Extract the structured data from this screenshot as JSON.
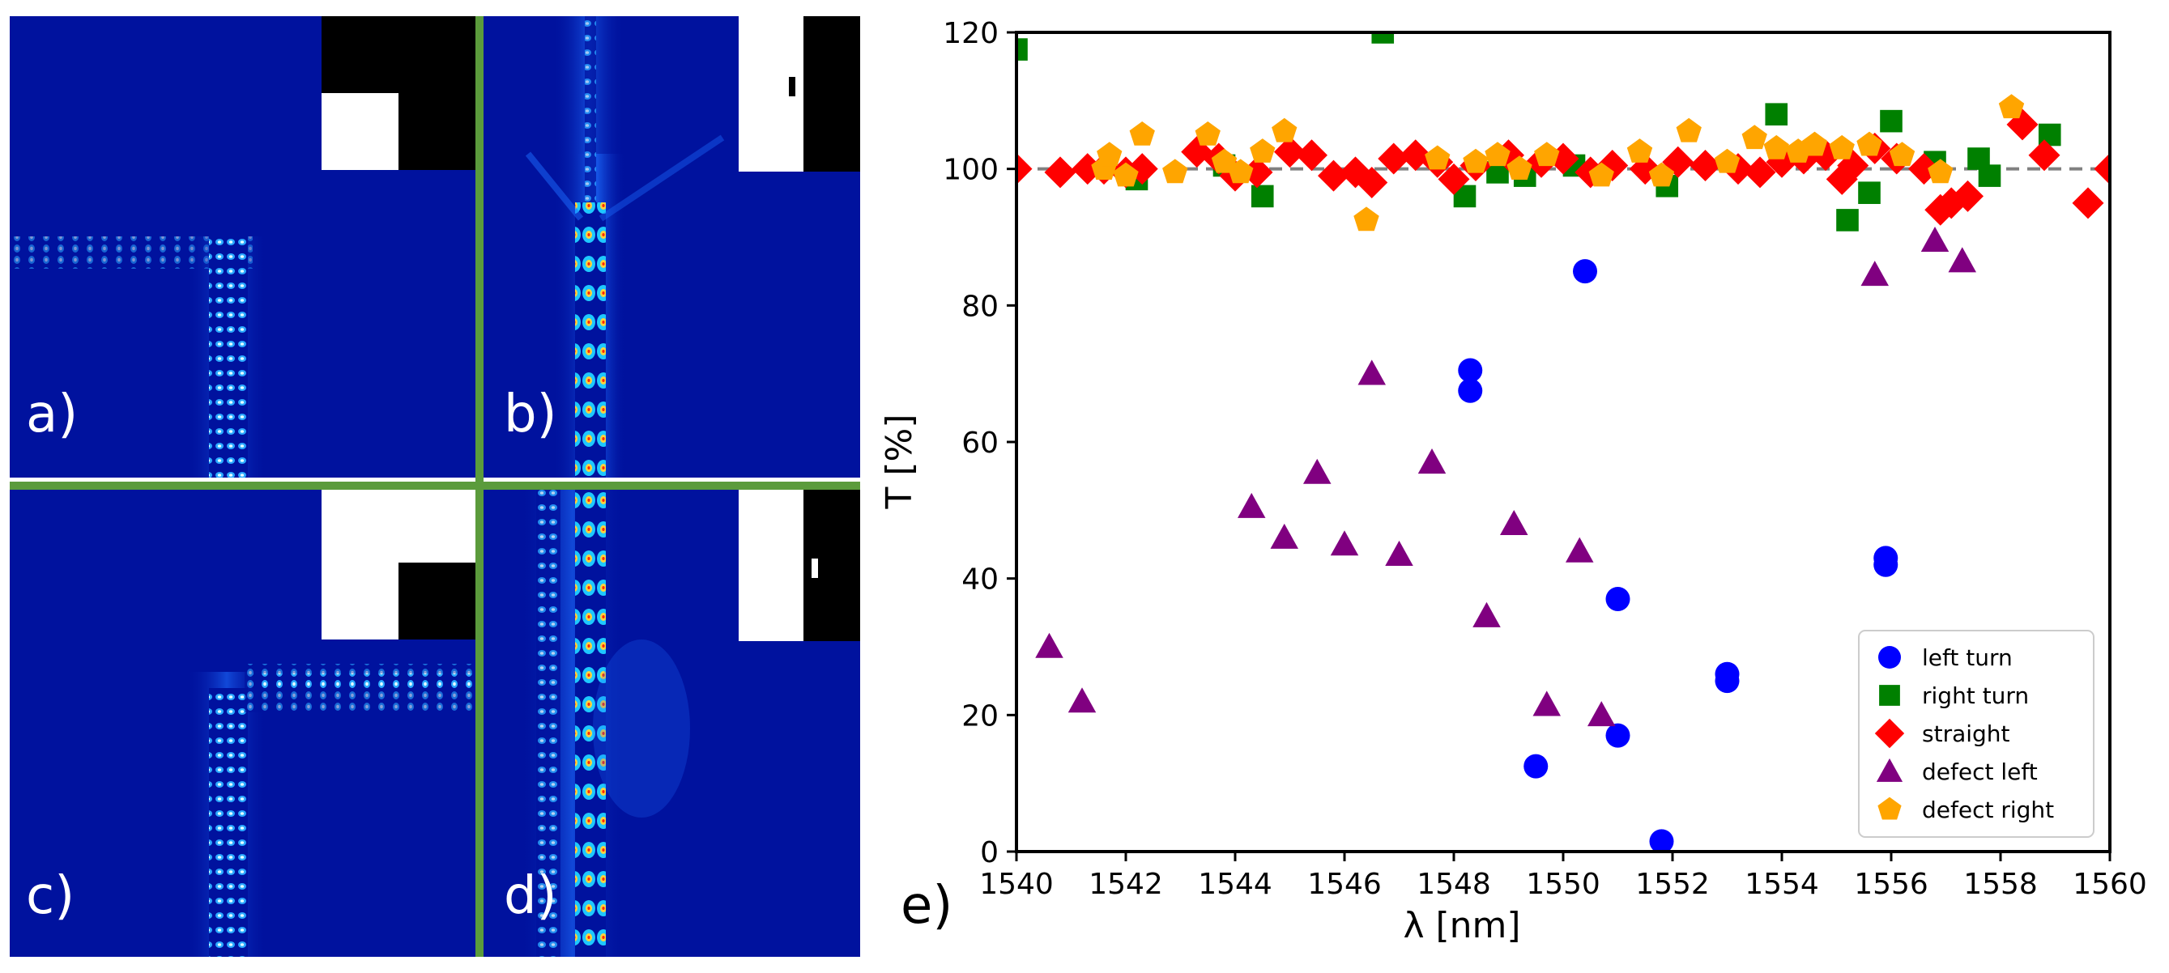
{
  "panels": [
    {
      "id": "a",
      "label": "a)"
    },
    {
      "id": "b",
      "label": "b)"
    },
    {
      "id": "c",
      "label": "c)"
    },
    {
      "id": "d",
      "label": "d)"
    }
  ],
  "colors": {
    "field_background": "#00129e",
    "divider": "#5b9b3c",
    "left_turn": "#0000ff",
    "right_turn": "#008000",
    "straight": "#ff0000",
    "defect_left": "#800080",
    "defect_right": "#ffa500",
    "reference_line": "#808080"
  },
  "chart_data": {
    "type": "scatter",
    "panel_label": "e)",
    "xlabel": "λ [nm]",
    "ylabel": "T [%]",
    "xlim": [
      1540,
      1560
    ],
    "ylim": [
      0,
      120
    ],
    "xticks": [
      1540,
      1542,
      1544,
      1546,
      1548,
      1550,
      1552,
      1554,
      1556,
      1558,
      1560
    ],
    "yticks": [
      0,
      20,
      40,
      60,
      80,
      100,
      120
    ],
    "reference_line": {
      "y": 100,
      "style": "dashed"
    },
    "legend": {
      "position": "lower-right"
    },
    "series": [
      {
        "name": "left turn",
        "marker": "circle",
        "color": "#0000ff",
        "points": [
          [
            1548.3,
            70.5
          ],
          [
            1548.3,
            67.5
          ],
          [
            1549.5,
            12.5
          ],
          [
            1550.4,
            85
          ],
          [
            1551.0,
            37
          ],
          [
            1551.0,
            17
          ],
          [
            1551.8,
            1.5
          ],
          [
            1553.0,
            26
          ],
          [
            1553.0,
            25
          ],
          [
            1555.9,
            43
          ],
          [
            1555.9,
            42
          ]
        ]
      },
      {
        "name": "right turn",
        "marker": "square",
        "color": "#008000",
        "points": [
          [
            1540.0,
            117.5
          ],
          [
            1546.7,
            120
          ],
          [
            1542.2,
            98.5
          ],
          [
            1543.8,
            100.5
          ],
          [
            1544.5,
            96
          ],
          [
            1548.2,
            96
          ],
          [
            1548.8,
            99.5
          ],
          [
            1549.3,
            99
          ],
          [
            1550.2,
            100.5
          ],
          [
            1551.9,
            97.5
          ],
          [
            1553.9,
            108
          ],
          [
            1555.2,
            92.5
          ],
          [
            1555.6,
            96.5
          ],
          [
            1556.0,
            107
          ],
          [
            1556.8,
            101
          ],
          [
            1557.6,
            101.5
          ],
          [
            1557.8,
            99
          ],
          [
            1558.9,
            105
          ]
        ]
      },
      {
        "name": "straight",
        "marker": "diamond",
        "color": "#ff0000",
        "points": [
          [
            1540.0,
            100
          ],
          [
            1540.8,
            99.5
          ],
          [
            1541.3,
            100
          ],
          [
            1541.6,
            100
          ],
          [
            1542.0,
            99.5
          ],
          [
            1542.3,
            100
          ],
          [
            1543.3,
            102.5
          ],
          [
            1543.7,
            101.5
          ],
          [
            1544.0,
            99
          ],
          [
            1544.4,
            99.5
          ],
          [
            1545.0,
            102.5
          ],
          [
            1545.4,
            102
          ],
          [
            1545.8,
            99
          ],
          [
            1546.2,
            99.5
          ],
          [
            1546.5,
            98
          ],
          [
            1546.9,
            101.5
          ],
          [
            1547.3,
            102
          ],
          [
            1547.7,
            101
          ],
          [
            1548.0,
            98.5
          ],
          [
            1548.4,
            100.5
          ],
          [
            1549.0,
            102
          ],
          [
            1549.6,
            101
          ],
          [
            1550.0,
            101.5
          ],
          [
            1550.5,
            99.5
          ],
          [
            1550.9,
            100.5
          ],
          [
            1551.5,
            100
          ],
          [
            1552.1,
            101
          ],
          [
            1552.6,
            100.5
          ],
          [
            1553.2,
            100
          ],
          [
            1553.6,
            99.5
          ],
          [
            1554.0,
            101
          ],
          [
            1554.4,
            101.5
          ],
          [
            1554.8,
            102
          ],
          [
            1555.1,
            98.5
          ],
          [
            1555.3,
            100.5
          ],
          [
            1555.7,
            103
          ],
          [
            1556.1,
            101.5
          ],
          [
            1556.6,
            100
          ],
          [
            1556.9,
            94
          ],
          [
            1557.1,
            95
          ],
          [
            1557.4,
            96
          ],
          [
            1558.4,
            106.5
          ],
          [
            1558.8,
            102
          ],
          [
            1559.6,
            95
          ],
          [
            1560.0,
            100
          ]
        ]
      },
      {
        "name": "defect left",
        "marker": "triangle",
        "color": "#800080",
        "points": [
          [
            1540.6,
            30
          ],
          [
            1541.2,
            22
          ],
          [
            1544.3,
            50.5
          ],
          [
            1544.9,
            46
          ],
          [
            1545.5,
            55.5
          ],
          [
            1546.0,
            45
          ],
          [
            1546.5,
            70
          ],
          [
            1547.0,
            43.5
          ],
          [
            1547.6,
            57
          ],
          [
            1548.6,
            34.5
          ],
          [
            1549.1,
            48
          ],
          [
            1549.7,
            21.5
          ],
          [
            1550.3,
            44
          ],
          [
            1550.7,
            20
          ],
          [
            1555.7,
            84.5
          ],
          [
            1556.8,
            89.5
          ],
          [
            1557.3,
            86.5
          ]
        ]
      },
      {
        "name": "defect right",
        "marker": "pentagon",
        "color": "#ffa500",
        "points": [
          [
            1541.6,
            100
          ],
          [
            1541.7,
            102
          ],
          [
            1542.0,
            99
          ],
          [
            1542.3,
            105
          ],
          [
            1542.9,
            99.5
          ],
          [
            1543.5,
            105
          ],
          [
            1543.8,
            101
          ],
          [
            1544.1,
            99.5
          ],
          [
            1544.5,
            102.5
          ],
          [
            1544.9,
            105.5
          ],
          [
            1546.4,
            92.5
          ],
          [
            1547.7,
            101.5
          ],
          [
            1548.4,
            101
          ],
          [
            1548.8,
            102
          ],
          [
            1549.2,
            100
          ],
          [
            1549.7,
            102
          ],
          [
            1550.7,
            99
          ],
          [
            1551.4,
            102.5
          ],
          [
            1551.8,
            99
          ],
          [
            1552.3,
            105.5
          ],
          [
            1553.0,
            101
          ],
          [
            1553.5,
            104.5
          ],
          [
            1553.9,
            103
          ],
          [
            1554.3,
            102.5
          ],
          [
            1554.6,
            103.5
          ],
          [
            1555.1,
            103
          ],
          [
            1555.6,
            103.5
          ],
          [
            1556.2,
            102
          ],
          [
            1556.9,
            99.5
          ],
          [
            1558.2,
            109
          ]
        ]
      }
    ]
  }
}
